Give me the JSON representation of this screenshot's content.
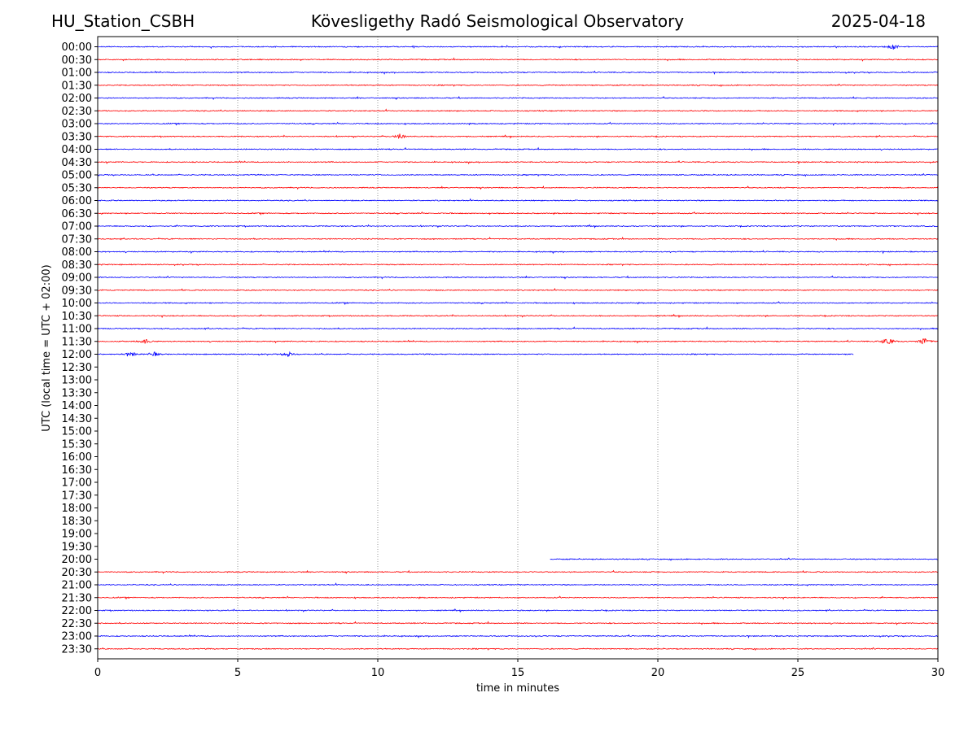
{
  "header": {
    "station": "HU_Station_CSBH",
    "observatory": "Kövesligethy Radó Seismological Observatory",
    "date": "2025-04-18"
  },
  "chart_data": {
    "type": "line",
    "title": "Kövesligethy Radó Seismological Observatory",
    "xlabel": "time in minutes",
    "ylabel": "UTC (local time = UTC + 02:00)",
    "xlim": [
      0,
      30
    ],
    "x_ticks": [
      "0",
      "5",
      "10",
      "15",
      "20",
      "25",
      "30"
    ],
    "x_tick_values": [
      0,
      5,
      10,
      15,
      20,
      25,
      30
    ],
    "grid": "vertical dotted lines at x ticks",
    "colors": {
      "even_rows": "#0000ff",
      "odd_rows": "#ff0000",
      "grid": "#555555"
    },
    "rows": [
      {
        "label": "00:00",
        "start": 0,
        "end": 30,
        "events": [
          {
            "t": 28.4,
            "amp": 4
          }
        ]
      },
      {
        "label": "00:30",
        "start": 0,
        "end": 30
      },
      {
        "label": "01:00",
        "start": 0,
        "end": 30
      },
      {
        "label": "01:30",
        "start": 0,
        "end": 30
      },
      {
        "label": "02:00",
        "start": 0,
        "end": 30
      },
      {
        "label": "02:30",
        "start": 0,
        "end": 30
      },
      {
        "label": "03:00",
        "start": 0,
        "end": 30
      },
      {
        "label": "03:30",
        "start": 0,
        "end": 30,
        "events": [
          {
            "t": 10.8,
            "amp": 3.5
          }
        ]
      },
      {
        "label": "04:00",
        "start": 0,
        "end": 30
      },
      {
        "label": "04:30",
        "start": 0,
        "end": 30
      },
      {
        "label": "05:00",
        "start": 0,
        "end": 30
      },
      {
        "label": "05:30",
        "start": 0,
        "end": 30
      },
      {
        "label": "06:00",
        "start": 0,
        "end": 30
      },
      {
        "label": "06:30",
        "start": 0,
        "end": 30
      },
      {
        "label": "07:00",
        "start": 0,
        "end": 30
      },
      {
        "label": "07:30",
        "start": 0,
        "end": 30
      },
      {
        "label": "08:00",
        "start": 0,
        "end": 30
      },
      {
        "label": "08:30",
        "start": 0,
        "end": 30
      },
      {
        "label": "09:00",
        "start": 0,
        "end": 30
      },
      {
        "label": "09:30",
        "start": 0,
        "end": 30
      },
      {
        "label": "10:00",
        "start": 0,
        "end": 30
      },
      {
        "label": "10:30",
        "start": 0,
        "end": 30
      },
      {
        "label": "11:00",
        "start": 0,
        "end": 30
      },
      {
        "label": "11:30",
        "start": 0,
        "end": 30,
        "events": [
          {
            "t": 1.7,
            "amp": 3
          },
          {
            "t": 28.2,
            "amp": 6
          },
          {
            "t": 29.5,
            "amp": 5
          }
        ]
      },
      {
        "label": "12:00",
        "start": 0,
        "end": 27,
        "events": [
          {
            "t": 1.2,
            "amp": 3
          },
          {
            "t": 2.0,
            "amp": 3
          },
          {
            "t": 6.8,
            "amp": 3
          }
        ]
      },
      {
        "label": "12:30",
        "start": null,
        "end": null
      },
      {
        "label": "13:00",
        "start": null,
        "end": null
      },
      {
        "label": "13:30",
        "start": null,
        "end": null
      },
      {
        "label": "14:00",
        "start": null,
        "end": null
      },
      {
        "label": "14:30",
        "start": null,
        "end": null
      },
      {
        "label": "15:00",
        "start": null,
        "end": null
      },
      {
        "label": "15:30",
        "start": null,
        "end": null
      },
      {
        "label": "16:00",
        "start": null,
        "end": null
      },
      {
        "label": "16:30",
        "start": null,
        "end": null
      },
      {
        "label": "17:00",
        "start": null,
        "end": null
      },
      {
        "label": "17:30",
        "start": null,
        "end": null
      },
      {
        "label": "18:00",
        "start": null,
        "end": null
      },
      {
        "label": "18:30",
        "start": null,
        "end": null
      },
      {
        "label": "19:00",
        "start": null,
        "end": null
      },
      {
        "label": "19:30",
        "start": null,
        "end": null
      },
      {
        "label": "20:00",
        "start": 16.15,
        "end": 30
      },
      {
        "label": "20:30",
        "start": 0,
        "end": 30
      },
      {
        "label": "21:00",
        "start": 0,
        "end": 30
      },
      {
        "label": "21:30",
        "start": 0,
        "end": 30
      },
      {
        "label": "22:00",
        "start": 0,
        "end": 30
      },
      {
        "label": "22:30",
        "start": 0,
        "end": 30
      },
      {
        "label": "23:00",
        "start": 0,
        "end": 30
      },
      {
        "label": "23:30",
        "start": 0,
        "end": 30
      }
    ]
  }
}
